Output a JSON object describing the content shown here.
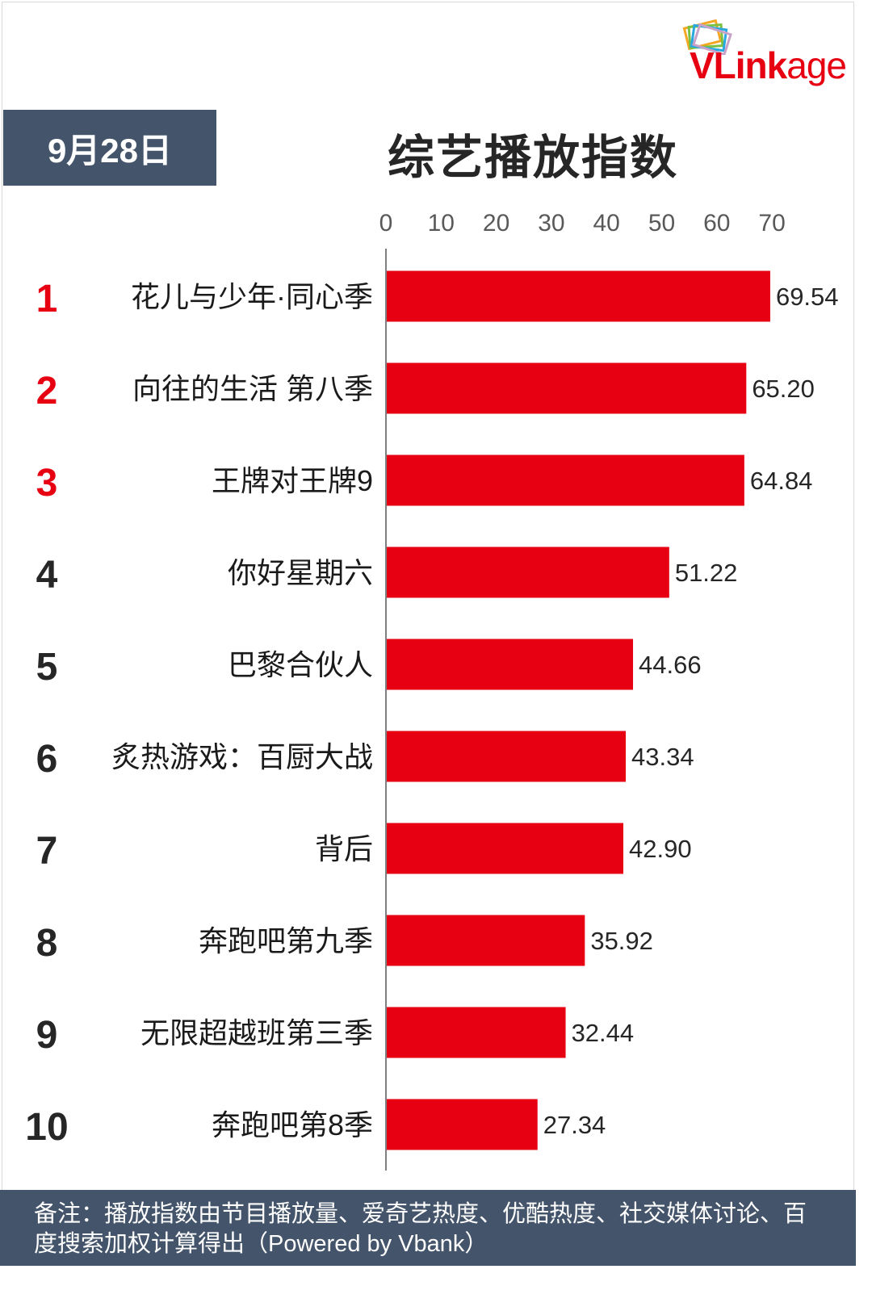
{
  "brand": {
    "logo_text_bold": "VLink",
    "logo_text_light": "age"
  },
  "header": {
    "date": "9月28日",
    "title": "综艺播放指数"
  },
  "footer": {
    "note": "备注：播放指数由节目播放量、爱奇艺热度、优酷热度、社交媒体讨论、百度搜索加权计算得出（Powered by Vbank）"
  },
  "colors": {
    "bar": "#e60012",
    "top_rank": "#e60012",
    "rank": "#262626",
    "banner": "#44546a"
  },
  "chart_data": {
    "type": "bar",
    "orientation": "horizontal",
    "ranks": [
      "1",
      "2",
      "3",
      "4",
      "5",
      "6",
      "7",
      "8",
      "9",
      "10"
    ],
    "categories": [
      "花儿与少年·同心季",
      "向往的生活 第八季",
      "王牌对王牌9",
      "你好星期六",
      "巴黎合伙人",
      "炙热游戏：百厨大战",
      "背后",
      "奔跑吧第九季",
      "无限超越班第三季",
      "奔跑吧第8季"
    ],
    "values": [
      69.54,
      65.2,
      64.84,
      51.22,
      44.66,
      43.34,
      42.9,
      35.92,
      32.44,
      27.34
    ],
    "value_labels": [
      "69.54",
      "65.20",
      "64.84",
      "51.22",
      "44.66",
      "43.34",
      "42.90",
      "35.92",
      "32.44",
      "27.34"
    ],
    "xticks": [
      "0",
      "10",
      "20",
      "30",
      "40",
      "50",
      "60",
      "70"
    ],
    "xlim": [
      0,
      70
    ],
    "grid": false
  }
}
